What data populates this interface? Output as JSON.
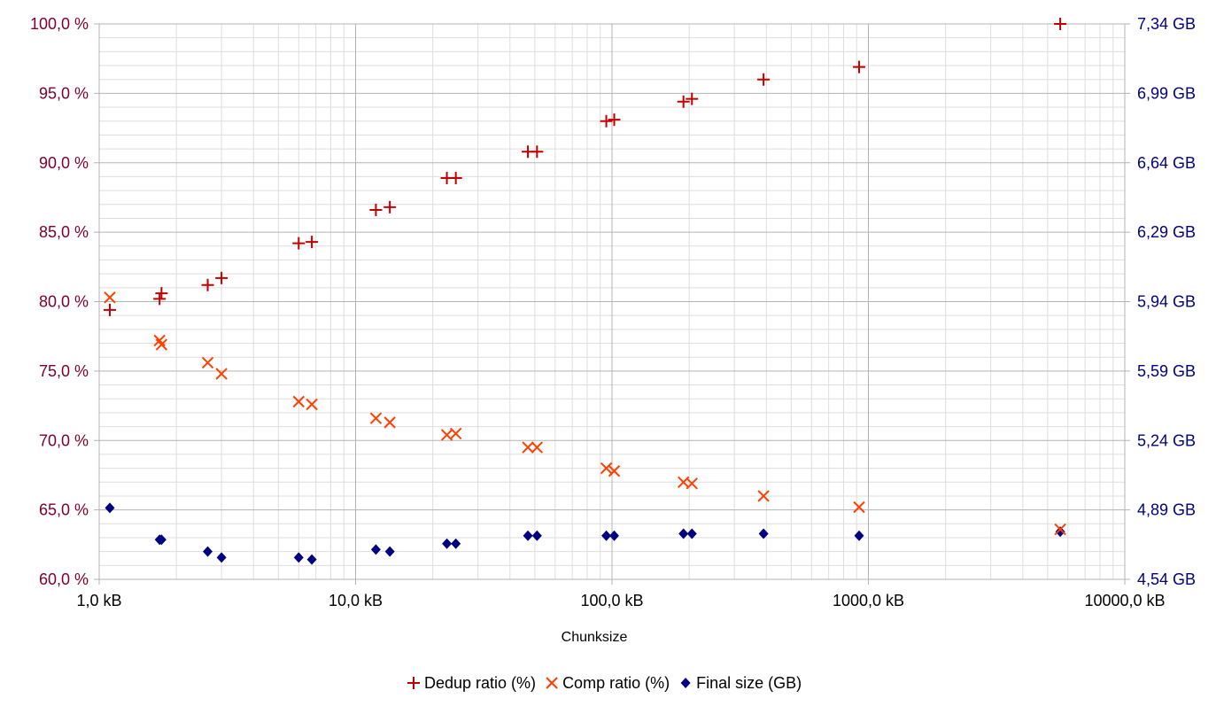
{
  "chart_data": {
    "type": "scatter",
    "title": "",
    "xlabel": "Chunksize",
    "x_scale": "log",
    "xlim": [
      1,
      10000
    ],
    "x_ticks": [
      1,
      10,
      100,
      1000,
      10000
    ],
    "x_tick_labels": [
      "1,0 kB",
      "10,0 kB",
      "100,0 kB",
      "1000,0 kB",
      "10000,0 kB"
    ],
    "y_left": {
      "ylim": [
        60,
        100
      ],
      "ticks": [
        60,
        65,
        70,
        75,
        80,
        85,
        90,
        95,
        100
      ],
      "tick_labels": [
        "60,0 %",
        "65,0 %",
        "70,0 %",
        "75,0 %",
        "80,0 %",
        "85,0 %",
        "90,0 %",
        "95,0 %",
        "100,0 %"
      ],
      "color": "#80002a"
    },
    "y_right": {
      "ylim": [
        4.54,
        7.34
      ],
      "ticks": [
        4.54,
        4.89,
        5.24,
        5.59,
        5.94,
        6.29,
        6.64,
        6.99,
        7.34
      ],
      "tick_labels": [
        "4,54 GB",
        "4,89 GB",
        "5,24 GB",
        "5,59 GB",
        "5,94 GB",
        "6,29 GB",
        "6,64 GB",
        "6,99 GB",
        "7,34 GB"
      ],
      "color": "#000080"
    },
    "grid": true,
    "legend_position": "bottom",
    "series": [
      {
        "name": "Dedup ratio (%)",
        "marker": "plus",
        "color": "#c00000",
        "axis": "left",
        "points": [
          [
            1.1,
            79.4
          ],
          [
            1.72,
            80.2
          ],
          [
            1.75,
            80.6
          ],
          [
            2.65,
            81.2
          ],
          [
            3.0,
            81.7
          ],
          [
            6.0,
            84.2
          ],
          [
            6.75,
            84.3
          ],
          [
            12.0,
            86.6
          ],
          [
            13.6,
            86.8
          ],
          [
            22.7,
            88.9
          ],
          [
            24.6,
            88.9
          ],
          [
            47.0,
            90.8
          ],
          [
            51.0,
            90.8
          ],
          [
            95.0,
            93.0
          ],
          [
            102.0,
            93.1
          ],
          [
            190.0,
            94.4
          ],
          [
            205.0,
            94.6
          ],
          [
            390.0,
            96.0
          ],
          [
            920.0,
            96.9
          ],
          [
            5600.0,
            100.0
          ]
        ]
      },
      {
        "name": "Comp ratio (%)",
        "marker": "x",
        "color": "#ff4000",
        "axis": "left",
        "points": [
          [
            1.1,
            80.3
          ],
          [
            1.72,
            77.2
          ],
          [
            1.75,
            76.9
          ],
          [
            2.65,
            75.6
          ],
          [
            3.0,
            74.8
          ],
          [
            6.0,
            72.8
          ],
          [
            6.75,
            72.6
          ],
          [
            12.0,
            71.6
          ],
          [
            13.6,
            71.3
          ],
          [
            22.7,
            70.4
          ],
          [
            24.6,
            70.5
          ],
          [
            47.0,
            69.5
          ],
          [
            51.0,
            69.5
          ],
          [
            95.0,
            68.0
          ],
          [
            102.0,
            67.8
          ],
          [
            190.0,
            67.0
          ],
          [
            205.0,
            66.9
          ],
          [
            390.0,
            66.0
          ],
          [
            920.0,
            65.2
          ],
          [
            5600.0,
            63.6
          ]
        ]
      },
      {
        "name": "Final size (GB)",
        "marker": "diamond",
        "color": "#000080",
        "axis": "right",
        "points": [
          [
            1.1,
            4.9
          ],
          [
            1.72,
            4.74
          ],
          [
            1.75,
            4.74
          ],
          [
            2.65,
            4.68
          ],
          [
            3.0,
            4.65
          ],
          [
            6.0,
            4.65
          ],
          [
            6.75,
            4.64
          ],
          [
            12.0,
            4.69
          ],
          [
            13.6,
            4.68
          ],
          [
            22.7,
            4.72
          ],
          [
            24.6,
            4.72
          ],
          [
            47.0,
            4.76
          ],
          [
            51.0,
            4.76
          ],
          [
            95.0,
            4.76
          ],
          [
            102.0,
            4.76
          ],
          [
            190.0,
            4.77
          ],
          [
            205.0,
            4.77
          ],
          [
            390.0,
            4.77
          ],
          [
            920.0,
            4.76
          ],
          [
            5600.0,
            4.78
          ]
        ]
      }
    ]
  }
}
